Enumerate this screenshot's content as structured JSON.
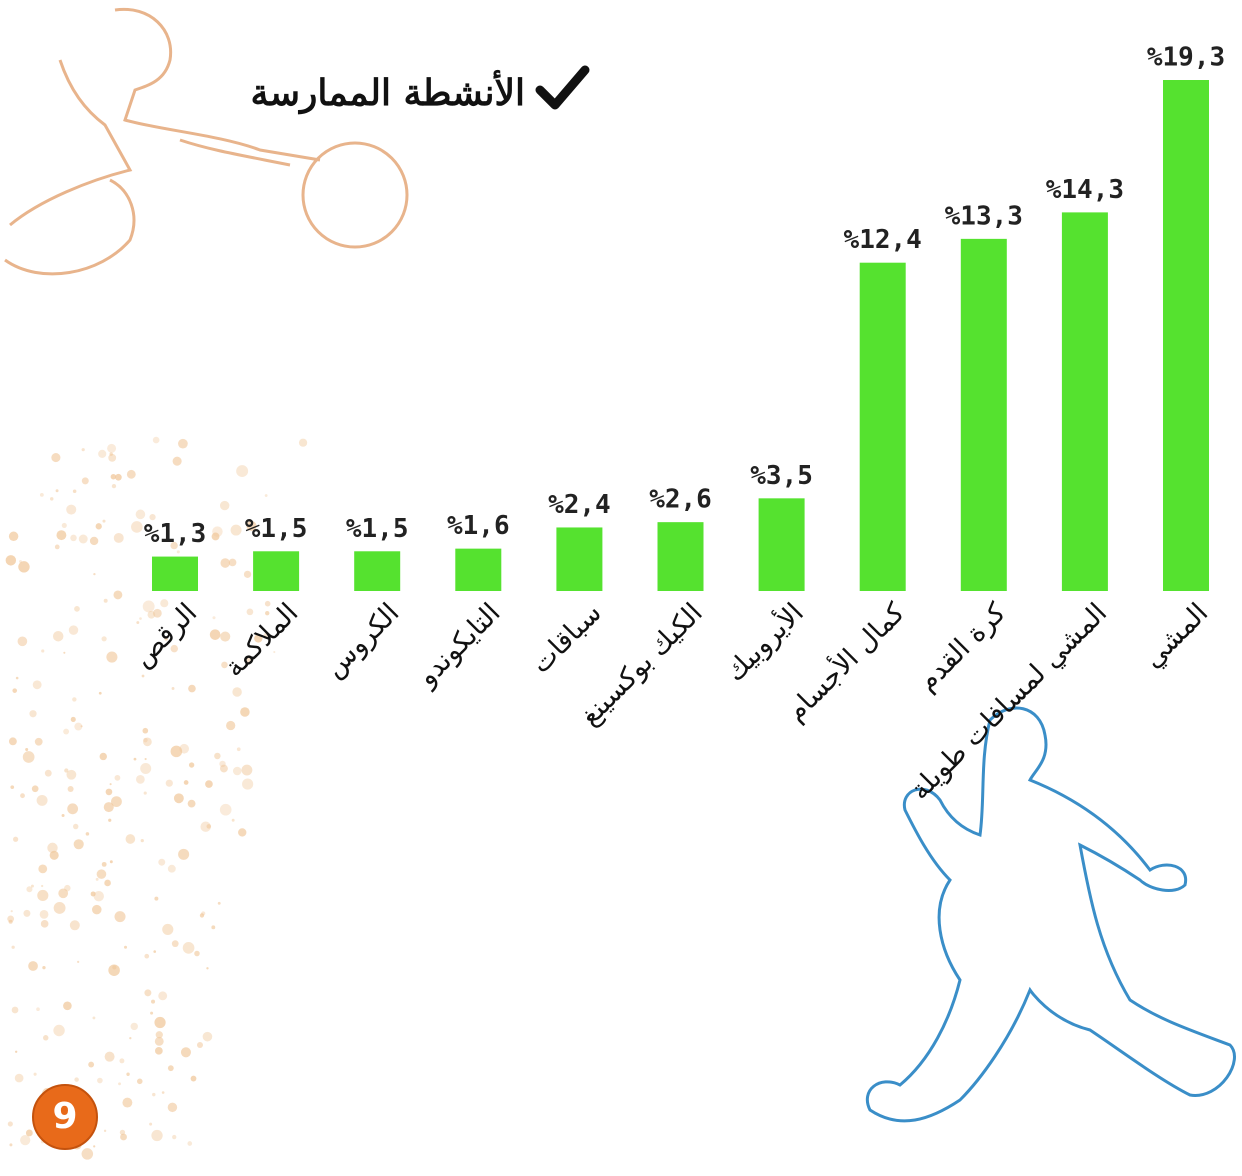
{
  "chart_data": {
    "type": "bar",
    "title": "الأنشطة الممارسة",
    "categories": [
      "الرقص",
      "الملاكمة",
      "الكروس",
      "التايكوندو",
      "سباقات",
      "الكيك بوكسينغ",
      "الأيروبيك",
      "كمال الأجسام",
      "كرة القدم",
      "المشي لمسافات طويلة",
      "المشي"
    ],
    "values": [
      1.3,
      1.5,
      1.5,
      1.6,
      2.4,
      2.6,
      3.5,
      12.4,
      13.3,
      14.3,
      19.3
    ],
    "value_labels": [
      "%1,3",
      "%1,5",
      "%1,5",
      "%1,6",
      "%2,4",
      "%2,6",
      "%3,5",
      "%12,4",
      "%13,3",
      "%14,3",
      "%19,3"
    ],
    "color": "#55e22f"
  },
  "page_number": "9"
}
